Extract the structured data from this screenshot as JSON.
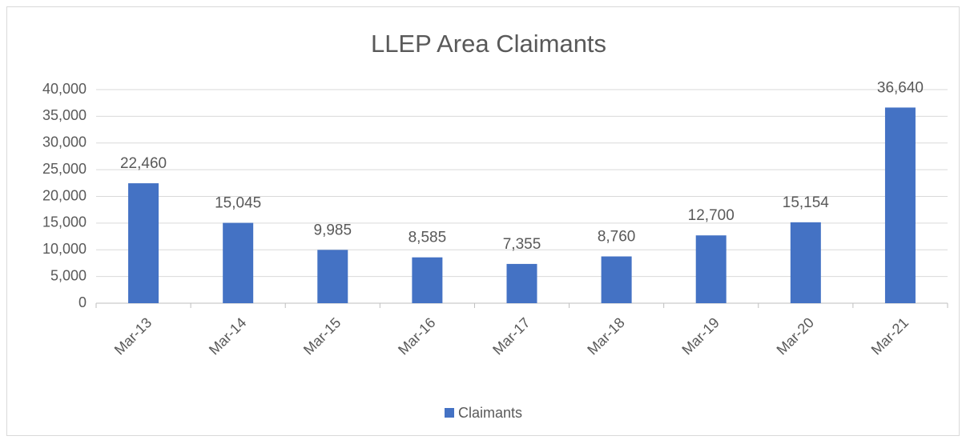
{
  "chart_data": {
    "type": "bar",
    "title": "LLEP Area Claimants",
    "categories": [
      "Mar-13",
      "Mar-14",
      "Mar-15",
      "Mar-16",
      "Mar-17",
      "Mar-18",
      "Mar-19",
      "Mar-20",
      "Mar-21"
    ],
    "series": [
      {
        "name": "Claimants",
        "color": "#4472c4",
        "values": [
          22460,
          15045,
          9985,
          8585,
          7355,
          8760,
          12700,
          15154,
          36640
        ],
        "value_labels": [
          "22,460",
          "15,045",
          "9,985",
          "8,585",
          "7,355",
          "8,760",
          "12,700",
          "15,154",
          "36,640"
        ]
      }
    ],
    "ylim": [
      0,
      40000
    ],
    "yticks": [
      0,
      {
        "value": 5000,
        "label": "5,000"
      },
      {
        "value": 10000,
        "label": "10,000"
      },
      {
        "value": 15000,
        "label": "15,000"
      },
      {
        "value": 20000,
        "label": "20,000"
      },
      {
        "value": 25000,
        "label": "25,000"
      },
      {
        "value": 30000,
        "label": "30,000"
      },
      {
        "value": 35000,
        "label": "35,000"
      },
      {
        "value": 40000,
        "label": "40,000"
      }
    ],
    "grid": true,
    "legend": "bottom"
  }
}
